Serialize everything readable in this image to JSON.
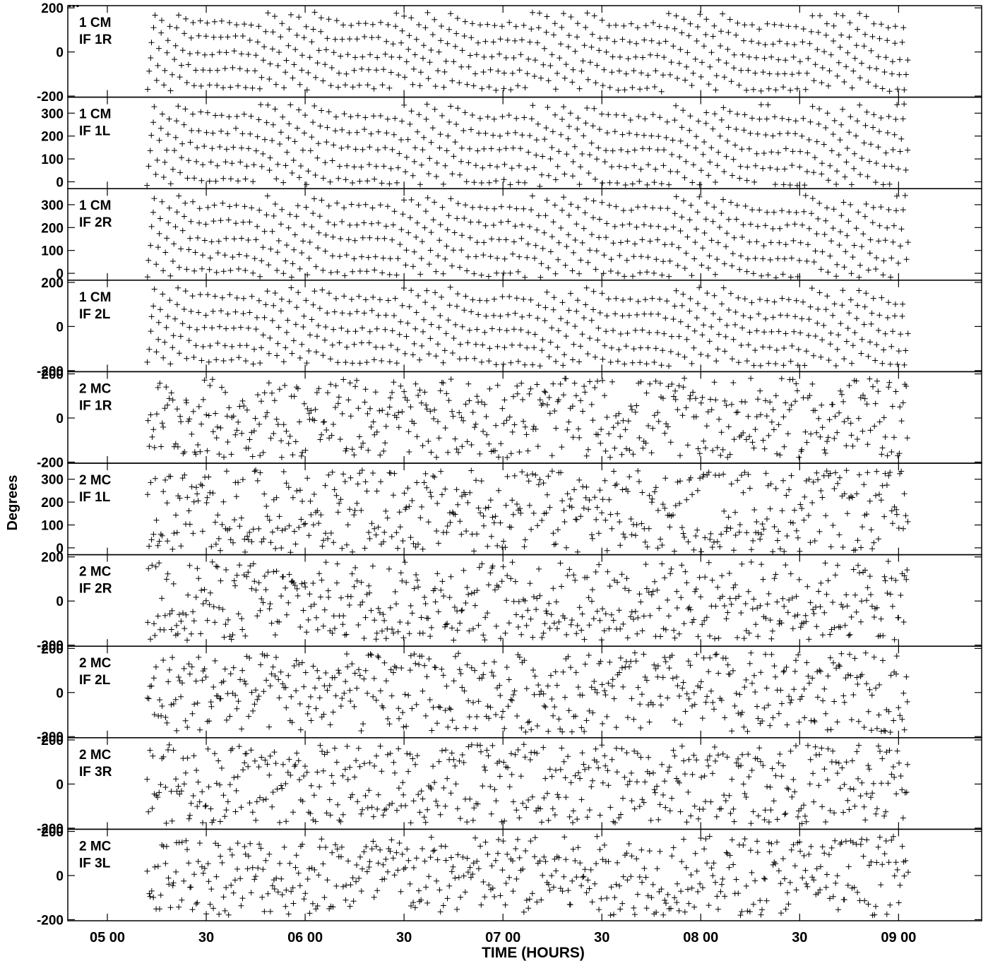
{
  "figure": {
    "title_fragment": "...",
    "ylabel": "Degrees",
    "xlabel": "TIME (HOURS)",
    "x_tick_labels": [
      "05 00",
      "30",
      "06 00",
      "30",
      "07 00",
      "30",
      "08 00",
      "30",
      "09 00"
    ],
    "ink_color": "#000000",
    "background_color": "#ffffff"
  },
  "chart_data": {
    "type": "scatter",
    "marker": "+",
    "xlabel": "TIME (HOURS)",
    "ylabel": "Degrees",
    "x_unit": "hours (UT)",
    "xlim": [
      4.8,
      9.42
    ],
    "x_ticks": [
      5.0,
      5.5,
      6.0,
      6.5,
      7.0,
      7.5,
      8.0,
      8.5,
      9.0
    ],
    "x_tick_labels": [
      "05 00",
      "30",
      "06 00",
      "30",
      "07 00",
      "30",
      "08 00",
      "30",
      "09 00"
    ],
    "data_time_range": [
      5.2,
      9.05
    ],
    "grid": false,
    "panels": [
      {
        "label_line1": "1 CM",
        "label_line2": "IF 1R",
        "ylim": [
          -205,
          210
        ],
        "y_ticks": [
          200,
          0,
          -200
        ],
        "y_tick_labels": [
          "200",
          "0",
          "-200"
        ],
        "data_range": [
          -180,
          180
        ],
        "pattern": "banded"
      },
      {
        "label_line1": "1 CM",
        "label_line2": "IF 1L",
        "ylim": [
          -30,
          370
        ],
        "y_ticks": [
          300,
          200,
          100,
          0
        ],
        "y_tick_labels": [
          "300",
          "200",
          "100",
          "0"
        ],
        "data_range": [
          -20,
          340
        ],
        "pattern": "banded"
      },
      {
        "label_line1": "1 CM",
        "label_line2": "IF 2R",
        "ylim": [
          -30,
          370
        ],
        "y_ticks": [
          300,
          200,
          100,
          0
        ],
        "y_tick_labels": [
          "300",
          "200",
          "100",
          "0"
        ],
        "data_range": [
          -20,
          340
        ],
        "pattern": "banded"
      },
      {
        "label_line1": "1 CM",
        "label_line2": "IF 2L",
        "ylim": [
          -205,
          210
        ],
        "y_ticks": [
          200,
          0,
          -200
        ],
        "y_tick_labels": [
          "200",
          "0",
          "-200"
        ],
        "data_range": [
          -180,
          180
        ],
        "pattern": "banded"
      },
      {
        "label_line1": "2 MC",
        "label_line2": "IF 1R",
        "ylim": [
          -205,
          210
        ],
        "y_ticks": [
          200,
          0,
          -200
        ],
        "y_tick_labels": [
          "200",
          "0",
          "-200"
        ],
        "data_range": [
          -180,
          180
        ],
        "pattern": "scattered"
      },
      {
        "label_line1": "2 MC",
        "label_line2": "IF 1L",
        "ylim": [
          -30,
          370
        ],
        "y_ticks": [
          300,
          200,
          100,
          0
        ],
        "y_tick_labels": [
          "300",
          "200",
          "100",
          "0"
        ],
        "data_range": [
          -20,
          340
        ],
        "pattern": "scattered"
      },
      {
        "label_line1": "2 MC",
        "label_line2": "IF 2R",
        "ylim": [
          -205,
          210
        ],
        "y_ticks": [
          200,
          0,
          -200
        ],
        "y_tick_labels": [
          "200",
          "0",
          "-200"
        ],
        "data_range": [
          -180,
          180
        ],
        "pattern": "scattered"
      },
      {
        "label_line1": "2 MC",
        "label_line2": "IF 2L",
        "ylim": [
          -205,
          210
        ],
        "y_ticks": [
          200,
          0,
          -200
        ],
        "y_tick_labels": [
          "200",
          "0",
          "-200"
        ],
        "data_range": [
          -180,
          180
        ],
        "pattern": "scattered"
      },
      {
        "label_line1": "2 MC",
        "label_line2": "IF 3R",
        "ylim": [
          -205,
          210
        ],
        "y_ticks": [
          200,
          0,
          -200
        ],
        "y_tick_labels": [
          "200",
          "0",
          "-200"
        ],
        "data_range": [
          -180,
          180
        ],
        "pattern": "scattered"
      },
      {
        "label_line1": "2 MC",
        "label_line2": "IF 3L",
        "ylim": [
          -205,
          210
        ],
        "y_ticks": [
          200,
          0,
          -200
        ],
        "y_tick_labels": [
          "200",
          "0",
          "-200"
        ],
        "data_range": [
          -180,
          180
        ],
        "pattern": "scattered"
      }
    ]
  }
}
